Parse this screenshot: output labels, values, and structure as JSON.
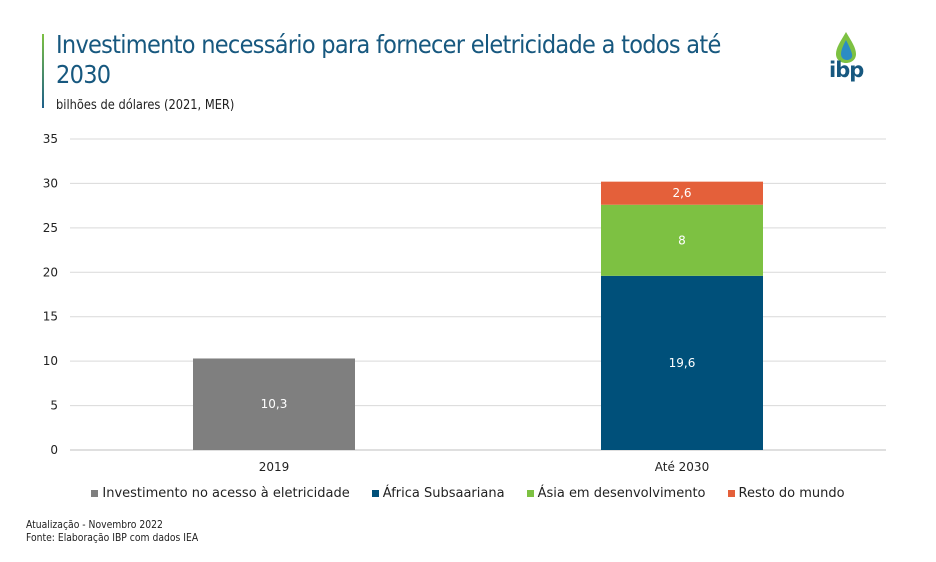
{
  "header": {
    "title": "Investimento necessário para fornecer eletricidade a todos até 2030",
    "subtitle": "bilhões de dólares (2021, MER)",
    "logo_text": "ibp"
  },
  "footer": {
    "update": "Atualização - Novembro 2022",
    "source": "Fonte: Elaboração IBP com dados IEA"
  },
  "chart_data": {
    "type": "bar",
    "stacked": true,
    "title": "Investimento necessário para fornecer eletricidade a todos até 2030",
    "ylabel": "bilhões de dólares (2021, MER)",
    "categories": [
      "2019",
      "Até 2030"
    ],
    "ylim": [
      0,
      35
    ],
    "yticks": [
      0,
      5,
      10,
      15,
      20,
      25,
      30,
      35
    ],
    "grid": true,
    "legend": "bottom",
    "series": [
      {
        "name": "Investimento no acesso à eletricidade",
        "color": "#7f7f7f",
        "values": [
          10.3,
          null
        ],
        "labels": [
          "10,3",
          ""
        ]
      },
      {
        "name": "África Subsaariana",
        "color": "#00507a",
        "values": [
          null,
          19.6
        ],
        "labels": [
          "",
          "19,6"
        ]
      },
      {
        "name": "Ásia em desenvolvimento",
        "color": "#7dc142",
        "values": [
          null,
          8
        ],
        "labels": [
          "",
          "8"
        ]
      },
      {
        "name": "Resto do mundo",
        "color": "#e4603a",
        "values": [
          null,
          2.6
        ],
        "labels": [
          "",
          "2,6"
        ]
      }
    ]
  }
}
